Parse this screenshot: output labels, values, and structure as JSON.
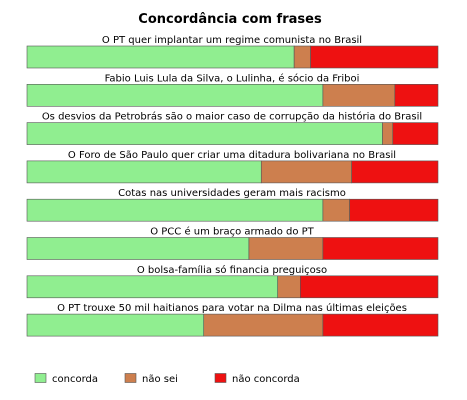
{
  "chart_data": {
    "type": "bar",
    "orientation": "horizontal",
    "stacked": true,
    "normalized": true,
    "title": "Concordância com frases",
    "categories": [
      "O PT quer implantar um regime comunista no Brasil",
      "Fabio Luis Lula da Silva, o Lulinha, é sócio da Friboi",
      "Os desvios da Petrobrás são o maior caso de corrupção da história do Brasil",
      "O Foro de São Paulo quer criar uma ditadura bolivariana no Brasil",
      "Cotas nas universidades geram mais racismo",
      "O PCC é um braço armado do PT",
      "O bolsa-família só financia preguiçoso",
      "O PT trouxe 50 mil haitianos para votar na Dilma nas últimas eleições"
    ],
    "series": [
      {
        "name": "concorda",
        "color": "#90ee90",
        "values": [
          0.65,
          0.72,
          0.865,
          0.57,
          0.72,
          0.54,
          0.61,
          0.43
        ]
      },
      {
        "name": "não sei",
        "color": "#cd7f4e",
        "values": [
          0.04,
          0.175,
          0.025,
          0.22,
          0.065,
          0.18,
          0.055,
          0.29
        ]
      },
      {
        "name": "não concorda",
        "color": "#ee1111",
        "values": [
          0.31,
          0.105,
          0.11,
          0.21,
          0.215,
          0.28,
          0.335,
          0.28
        ]
      }
    ],
    "xlim": [
      0,
      1
    ],
    "grid": false,
    "legend_position": "bottom"
  }
}
